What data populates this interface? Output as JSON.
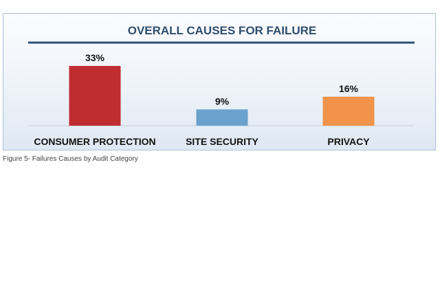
{
  "figure": {
    "caption": "Figure 5- Failures Causes by Audit Category"
  },
  "colors": {
    "title": "#2f4d6e",
    "title_rule": "#2e4f7a",
    "baseline": "#c8d0da",
    "label": "#111111"
  },
  "chart_data": {
    "type": "bar",
    "title": "OVERALL CAUSES FOR FAILURE",
    "categories": [
      "CONSUMER PROTECTION",
      "SITE SECURITY",
      "PRIVACY"
    ],
    "values": [
      33,
      9,
      16
    ],
    "value_labels": [
      "33%",
      "9%",
      "16%"
    ],
    "bar_colors": [
      "#bf2d33",
      "#6ba2cd",
      "#f1934a"
    ],
    "ylim": [
      0,
      33
    ],
    "grid": false,
    "legend": "none",
    "xlabel": "",
    "ylabel": ""
  }
}
